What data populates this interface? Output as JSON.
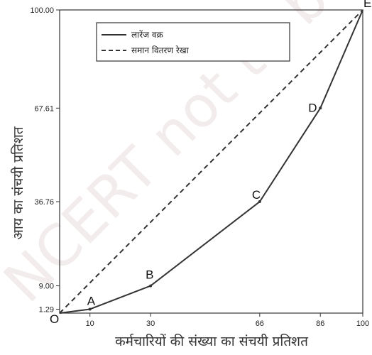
{
  "chart_data": {
    "type": "line",
    "xlabel": "कर्मचारियों की संख्या का संचयी प्रतिशत",
    "ylabel": "आय का संचयी प्रतिशत",
    "xlim": [
      0,
      100
    ],
    "ylim": [
      0,
      100
    ],
    "x_ticks": [
      "10",
      "30",
      "66",
      "86",
      "100"
    ],
    "y_ticks": [
      "1.29",
      "9.00",
      "36.76",
      "67.61",
      "100.00"
    ],
    "legend_position": "top-left",
    "series": [
      {
        "name": "लारेंज वक्र",
        "style": "solid",
        "x": [
          0,
          10,
          30,
          66,
          86,
          100
        ],
        "y": [
          0,
          1.29,
          9.0,
          36.76,
          67.61,
          100
        ]
      },
      {
        "name": "समान वितरण रेखा",
        "style": "dashed",
        "x": [
          0,
          100
        ],
        "y": [
          0,
          100
        ]
      }
    ],
    "point_labels": [
      {
        "label": "O",
        "x": 0,
        "y": 0
      },
      {
        "label": "A",
        "x": 10,
        "y": 1.29
      },
      {
        "label": "B",
        "x": 30,
        "y": 9.0
      },
      {
        "label": "C",
        "x": 66,
        "y": 36.76
      },
      {
        "label": "D",
        "x": 86,
        "y": 67.61
      },
      {
        "label": "E",
        "x": 100,
        "y": 100
      }
    ],
    "watermark": "NCERT not to be republished"
  }
}
